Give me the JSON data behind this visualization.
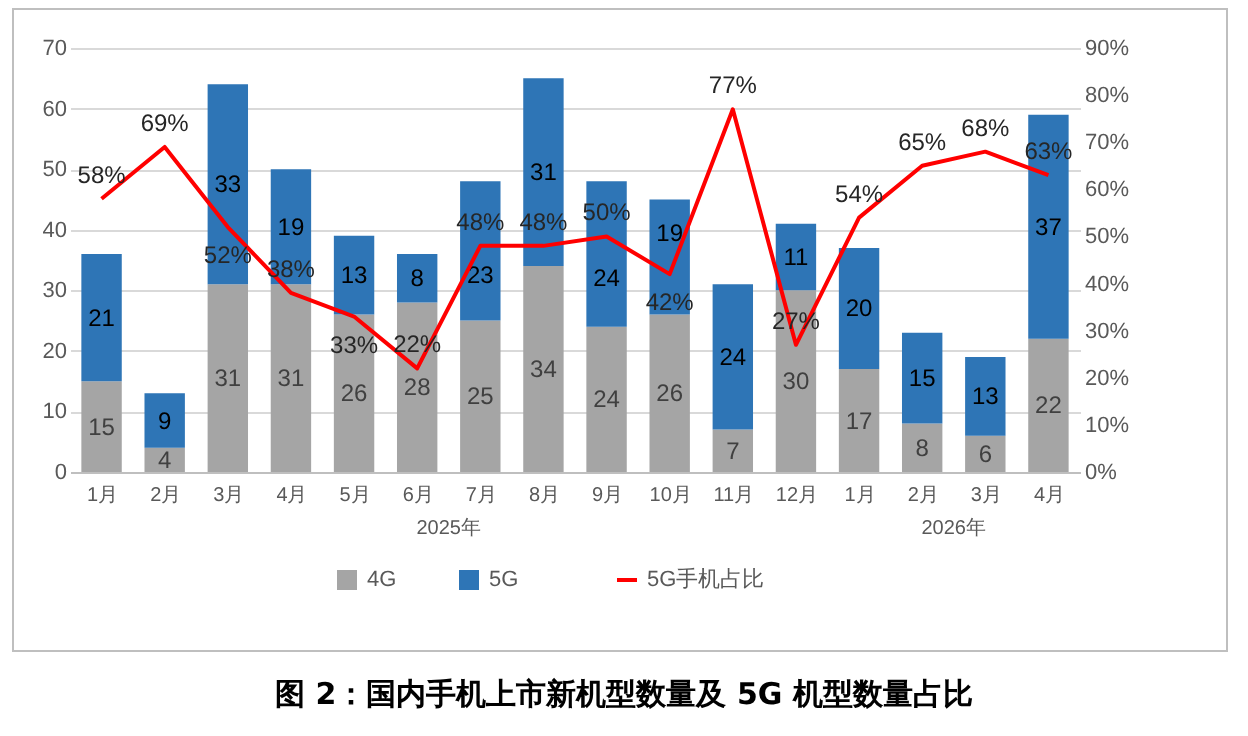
{
  "chart_data": {
    "type": "bar",
    "stacked": true,
    "title": "图 2：国内手机上市新机型数量及 5G 机型数量占比",
    "categories": [
      "1月",
      "2月",
      "3月",
      "4月",
      "5月",
      "6月",
      "7月",
      "8月",
      "9月",
      "10月",
      "11月",
      "12月",
      "1月",
      "2月",
      "3月",
      "4月"
    ],
    "annotations": [
      "2025年",
      "2026年"
    ],
    "series": [
      {
        "name": "4G",
        "color": "#a5a5a5",
        "values": [
          15,
          4,
          31,
          31,
          26,
          28,
          25,
          34,
          24,
          26,
          7,
          30,
          17,
          8,
          6,
          22
        ],
        "value_labels": [
          "15",
          "4",
          "31",
          "31",
          "26",
          "28",
          "25",
          "34",
          "24",
          "26",
          "7",
          "30",
          "17",
          "8",
          "6",
          "22"
        ]
      },
      {
        "name": "5G",
        "color": "#2e75b6",
        "values": [
          21,
          9,
          33,
          19,
          13,
          8,
          23,
          31,
          24,
          19,
          24,
          11,
          20,
          15,
          13,
          37
        ],
        "value_labels": [
          "21",
          "9",
          "33",
          "19",
          "13",
          "8",
          "23",
          "31",
          "24",
          "19",
          "24",
          "11",
          "20",
          "15",
          "13",
          "37"
        ]
      },
      {
        "name": "5G手机占比",
        "type": "line",
        "axis": "y2",
        "color": "#ff0000",
        "values": [
          58,
          69,
          52,
          38,
          33,
          22,
          48,
          48,
          50,
          42,
          77,
          27,
          54,
          65,
          68,
          63
        ],
        "value_labels": [
          "58%",
          "69%",
          "52%",
          "38%",
          "33%",
          "22%",
          "48%",
          "48%",
          "50%",
          "42%",
          "77%",
          "27%",
          "54%",
          "65%",
          "68%",
          "63%"
        ]
      }
    ],
    "ylim": [
      0,
      70
    ],
    "yticks": [
      0,
      10,
      20,
      30,
      40,
      50,
      60,
      70
    ],
    "y2lim": [
      0,
      90
    ],
    "y2ticks": [
      {
        "value": 0,
        "label": "0%"
      },
      {
        "value": 10,
        "label": "10%"
      },
      {
        "value": 20,
        "label": "20%"
      },
      {
        "value": 30,
        "label": "30%"
      },
      {
        "value": 40,
        "label": "40%"
      },
      {
        "value": 50,
        "label": "50%"
      },
      {
        "value": 60,
        "label": "60%"
      },
      {
        "value": 70,
        "label": "70%"
      },
      {
        "value": 80,
        "label": "80%"
      },
      {
        "value": 90,
        "label": "90%"
      }
    ],
    "grid": "y",
    "legend": "bottom",
    "marker": "none",
    "line_style": "solid"
  }
}
